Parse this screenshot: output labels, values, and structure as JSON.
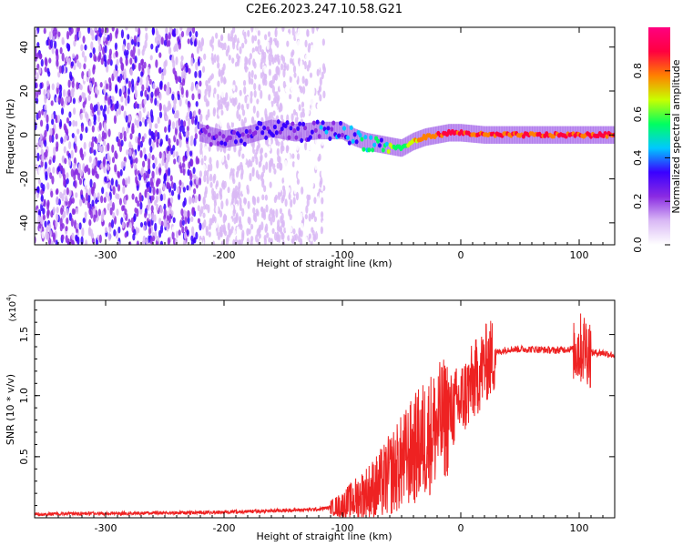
{
  "title": "C2E6.2023.247.10.58.G21",
  "chart_data": [
    {
      "type": "heatmap",
      "xlabel": "Height of straight line (km)",
      "ylabel": "Frequency (Hz)",
      "xlim": [
        -360,
        130
      ],
      "ylim": [
        -50,
        49
      ],
      "xticks": [
        -300,
        -200,
        -100,
        0,
        100
      ],
      "yticks": [
        -40,
        -20,
        0,
        20,
        40
      ],
      "xtick_labels": [
        "-300",
        "-200",
        "-100",
        "0",
        "100"
      ],
      "ytick_labels": [
        "-40",
        "-20",
        "0",
        "20",
        "40"
      ],
      "colorbar": {
        "label": "Normalized spectral amplitude",
        "range": [
          0,
          1
        ],
        "ticks": [
          0.0,
          0.2,
          0.4,
          0.6,
          0.8
        ],
        "tick_labels": [
          "0.0",
          "0.2",
          "0.4",
          "0.6",
          "0.8"
        ],
        "colors": [
          "#ffffff",
          "#d9b8f5",
          "#8a2be2",
          "#3a00ff",
          "#00c8ff",
          "#00ff60",
          "#c8ff00",
          "#ff8000",
          "#ff0040",
          "#ff0080"
        ]
      },
      "ridge": {
        "x": [
          -220,
          -200,
          -180,
          -160,
          -140,
          -120,
          -100,
          -90,
          -80,
          -70,
          -60,
          -50,
          -40,
          -30,
          -20,
          -10,
          0,
          20,
          60,
          100,
          130
        ],
        "frequency": [
          1,
          -2,
          0,
          3,
          1,
          2,
          2,
          -1,
          -3,
          -4,
          -5,
          -6,
          -3,
          -1,
          0,
          1,
          1,
          0,
          0,
          0,
          0
        ],
        "amplitude": [
          0.3,
          0.3,
          0.35,
          0.35,
          0.35,
          0.4,
          0.45,
          0.5,
          0.55,
          0.6,
          0.6,
          0.55,
          0.7,
          0.8,
          0.85,
          0.88,
          0.9,
          0.85,
          0.85,
          0.88,
          0.88
        ]
      },
      "noise_region": {
        "x": [
          -360,
          -115
        ],
        "strong_until": -220
      }
    },
    {
      "type": "line",
      "xlabel": "Height of straight line (km)",
      "ylabel": "SNR (10 * v/v)",
      "y_multiplier": "(x10",
      "y_multiplier_exp": "4",
      "y_multiplier_close": ")",
      "xlim": [
        -360,
        130
      ],
      "ylim": [
        0,
        1.78
      ],
      "xticks": [
        -300,
        -200,
        -100,
        0,
        100
      ],
      "yticks": [
        0.5,
        1.0,
        1.5
      ],
      "xtick_labels": [
        "-300",
        "-200",
        "-100",
        "0",
        "100"
      ],
      "ytick_labels": [
        "0.5",
        "1.0",
        "1.5"
      ],
      "series": [
        {
          "color": "#ee2222",
          "x": [
            -360,
            -300,
            -250,
            -200,
            -150,
            -120,
            -100,
            -90,
            -80,
            -70,
            -60,
            -50,
            -40,
            -30,
            -20,
            -10,
            0,
            10,
            20,
            30,
            40,
            60,
            80,
            90,
            100,
            105,
            110,
            120,
            130
          ],
          "y": [
            0.03,
            0.035,
            0.04,
            0.045,
            0.06,
            0.07,
            0.1,
            0.15,
            0.2,
            0.25,
            0.35,
            0.45,
            0.55,
            0.65,
            0.75,
            0.85,
            0.95,
            1.1,
            1.25,
            1.35,
            1.38,
            1.38,
            1.37,
            1.38,
            1.38,
            1.4,
            1.35,
            1.35,
            1.33
          ]
        }
      ]
    }
  ]
}
